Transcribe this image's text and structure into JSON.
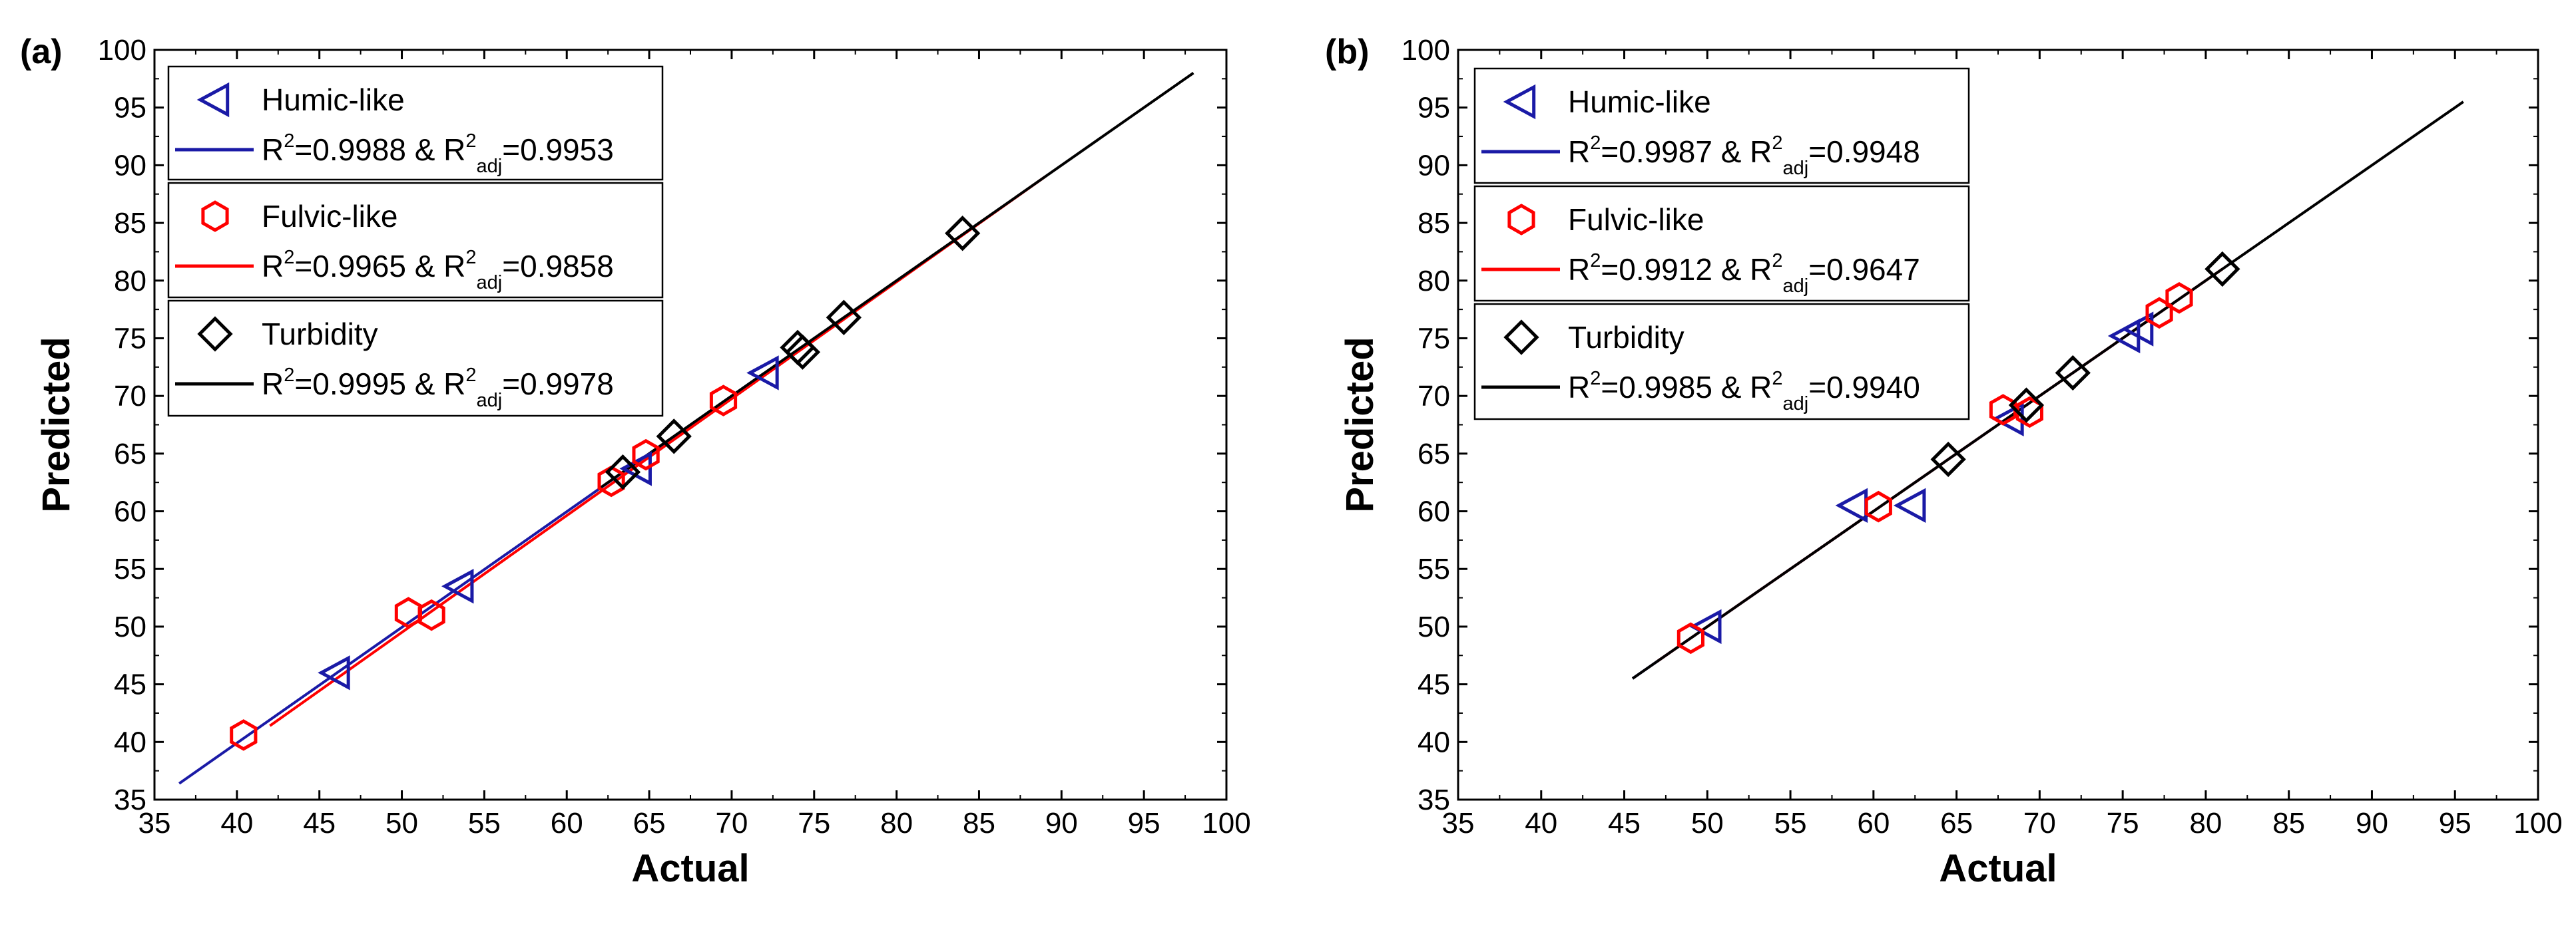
{
  "chart_data": [
    {
      "type": "scatter",
      "panel_label": "(a)",
      "xlabel": "Actual",
      "ylabel": "Predicted",
      "xlim": [
        35,
        100
      ],
      "ylim": [
        35,
        100
      ],
      "xticks": [
        35,
        40,
        45,
        50,
        55,
        60,
        65,
        70,
        75,
        80,
        85,
        90,
        95,
        100
      ],
      "yticks": [
        35,
        40,
        45,
        50,
        55,
        60,
        65,
        70,
        75,
        80,
        85,
        90,
        95,
        100
      ],
      "legend_position": "top-left",
      "series": [
        {
          "name": "Humic-like",
          "marker": "triangle-left",
          "color": "#1a1aa6",
          "r2_text": "R²=0.9988 & R²adj=0.9953",
          "r2": "0.9988",
          "r2_adj": "0.9953",
          "points": [
            [
              46.0,
              46.0
            ],
            [
              53.5,
              53.5
            ],
            [
              64.3,
              63.7
            ],
            [
              72.0,
              72.0
            ]
          ],
          "fit_line": [
            [
              36.5,
              36.4
            ],
            [
              72.0,
              72.0
            ]
          ]
        },
        {
          "name": "Fulvic-like",
          "marker": "hexagon",
          "color": "#ff0000",
          "r2_text": "R²=0.9965 & R²adj=0.9858",
          "r2": "0.9965",
          "r2_adj": "0.9858",
          "points": [
            [
              40.4,
              40.6
            ],
            [
              50.4,
              51.2
            ],
            [
              51.8,
              51.0
            ],
            [
              62.7,
              62.6
            ],
            [
              64.8,
              64.9
            ],
            [
              69.5,
              69.6
            ]
          ],
          "fit_line": [
            [
              42.0,
              41.4
            ],
            [
              89.0,
              89.0
            ]
          ]
        },
        {
          "name": "Turbidity",
          "marker": "diamond",
          "color": "#000000",
          "r2_text": "R²=0.9995 & R²adj=0.9978",
          "r2": "0.9995",
          "r2_adj": "0.9978",
          "points": [
            [
              63.4,
              63.4
            ],
            [
              66.5,
              66.5
            ],
            [
              74.0,
              74.2
            ],
            [
              74.3,
              73.8
            ],
            [
              76.8,
              76.8
            ],
            [
              84.0,
              84.1
            ]
          ],
          "fit_line": [
            [
              62.0,
              62.0
            ],
            [
              98.0,
              98.0
            ]
          ]
        }
      ]
    },
    {
      "type": "scatter",
      "panel_label": "(b)",
      "xlabel": "Actual",
      "ylabel": "Predicted",
      "xlim": [
        35,
        100
      ],
      "ylim": [
        35,
        100
      ],
      "xticks": [
        35,
        40,
        45,
        50,
        55,
        60,
        65,
        70,
        75,
        80,
        85,
        90,
        95,
        100
      ],
      "yticks": [
        35,
        40,
        45,
        50,
        55,
        60,
        65,
        70,
        75,
        80,
        85,
        90,
        95,
        100
      ],
      "legend_position": "top-left",
      "series": [
        {
          "name": "Humic-like",
          "marker": "triangle-left",
          "color": "#1a1aa6",
          "r2_text": "R²=0.9987 & R²adj=0.9948",
          "r2": "0.9987",
          "r2_adj": "0.9948",
          "points": [
            [
              50.0,
              50.0
            ],
            [
              58.8,
              60.5
            ],
            [
              62.3,
              60.5
            ],
            [
              68.2,
              68.0
            ],
            [
              75.2,
              75.2
            ],
            [
              76.0,
              75.8
            ]
          ],
          "fit_line": [
            [
              45.5,
              45.5
            ],
            [
              80.0,
              80.0
            ]
          ]
        },
        {
          "name": "Fulvic-like",
          "marker": "hexagon",
          "color": "#ff0000",
          "r2_text": "R²=0.9912 & R²adj=0.9647",
          "r2": "0.9912",
          "r2_adj": "0.9647",
          "points": [
            [
              49.0,
              49.0
            ],
            [
              60.3,
              60.4
            ],
            [
              67.8,
              68.8
            ],
            [
              69.4,
              68.6
            ],
            [
              77.2,
              77.2
            ],
            [
              78.4,
              78.5
            ]
          ],
          "fit_line": [
            [
              47.0,
              47.0
            ],
            [
              81.0,
              81.0
            ]
          ]
        },
        {
          "name": "Turbidity",
          "marker": "diamond",
          "color": "#000000",
          "r2_text": "R²=0.9985 & R²adj=0.9940",
          "r2": "0.9985",
          "r2_adj": "0.9940",
          "points": [
            [
              64.5,
              64.5
            ],
            [
              69.2,
              69.2
            ],
            [
              72.0,
              72.0
            ],
            [
              81.0,
              81.0
            ]
          ],
          "fit_line": [
            [
              45.5,
              45.5
            ],
            [
              95.5,
              95.5
            ]
          ]
        }
      ]
    }
  ]
}
